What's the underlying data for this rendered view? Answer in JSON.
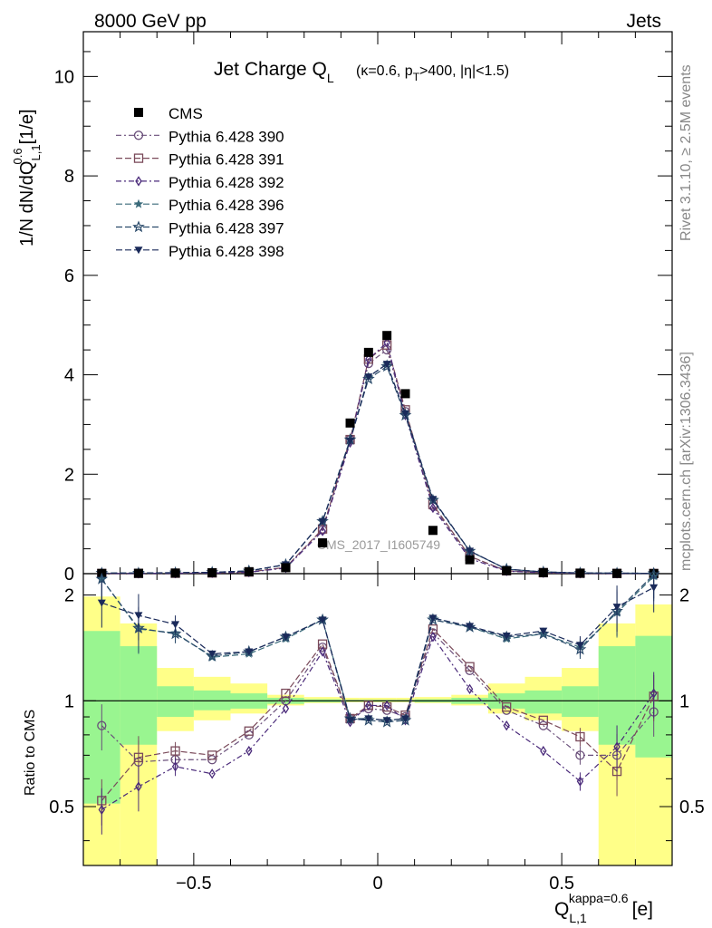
{
  "header": {
    "left": "8000 GeV pp",
    "right": "Jets"
  },
  "side_labels": {
    "rivet": "Rivet 3.1.10, ≥ 2.5M events",
    "mcplots": "mcplots.cern.ch [arXiv:1306.3436]"
  },
  "chart_data": {
    "type": "line",
    "title_main": "Jet Charge Q",
    "title_main_sub": "L",
    "title_detail": "(κ=0.6, p",
    "title_detail_sub": "T",
    "title_detail_rest": ">400, |η|<1.5)",
    "watermark": "CMS_2017_I1605749",
    "ylabel": "1/N dN/dQ",
    "ylabel_sup": "0.6",
    "ylabel_sub": "L,1",
    "ylabel_unit": "[1/e]",
    "ratio_ylabel": "Ratio to CMS",
    "xlabel": "Q",
    "xlabel_sup": "kappa=0.6",
    "xlabel_sub": "L,1",
    "xlabel_unit": "[e]",
    "xlim": [
      -0.8,
      0.8
    ],
    "ylim": [
      0,
      10.9
    ],
    "ratio_ylim": [
      0.34,
      2.3
    ],
    "x_ticks": [
      "−0.5",
      "0",
      "0.5"
    ],
    "x_tick_values": [
      -0.5,
      0,
      0.5
    ],
    "y_ticks": [
      "0",
      "2",
      "4",
      "6",
      "8",
      "10"
    ],
    "y_tick_values": [
      0,
      2,
      4,
      6,
      8,
      10
    ],
    "ratio_ticks": [
      "0.5",
      "1",
      "2"
    ],
    "ratio_tick_values": [
      0.5,
      1,
      2
    ],
    "bin_edges": [
      -0.8,
      -0.7,
      -0.6,
      -0.5,
      -0.4,
      -0.3,
      -0.2,
      -0.1,
      -0.05,
      0,
      0.05,
      0.1,
      0.2,
      0.3,
      0.4,
      0.5,
      0.6,
      0.7,
      0.8
    ],
    "x": [
      -0.75,
      -0.65,
      -0.55,
      -0.45,
      -0.35,
      -0.25,
      -0.15,
      -0.075,
      -0.025,
      0.025,
      0.075,
      0.15,
      0.25,
      0.35,
      0.45,
      0.55,
      0.65,
      0.75
    ],
    "data": {
      "name": "CMS",
      "values": [
        0.005,
        0.008,
        0.012,
        0.02,
        0.04,
        0.12,
        0.62,
        3.03,
        4.45,
        4.79,
        3.62,
        0.87,
        0.28,
        0.06,
        0.022,
        0.01,
        0.006,
        0.003
      ]
    },
    "band_yellow": [
      [
        0.34,
        1.98
      ],
      [
        0.34,
        1.66
      ],
      [
        0.82,
        1.24
      ],
      [
        0.88,
        1.17
      ],
      [
        0.92,
        1.12
      ],
      [
        0.97,
        1.04
      ],
      [
        0.985,
        1.025
      ],
      [
        0.99,
        1.02
      ],
      [
        0.99,
        1.02
      ],
      [
        0.99,
        1.02
      ],
      [
        0.99,
        1.02
      ],
      [
        0.985,
        1.025
      ],
      [
        0.97,
        1.04
      ],
      [
        0.92,
        1.12
      ],
      [
        0.88,
        1.17
      ],
      [
        0.82,
        1.24
      ],
      [
        0.34,
        1.66
      ],
      [
        0.34,
        1.88
      ]
    ],
    "band_green": [
      [
        0.51,
        1.58
      ],
      [
        0.75,
        1.43
      ],
      [
        0.9,
        1.1
      ],
      [
        0.94,
        1.07
      ],
      [
        0.95,
        1.05
      ],
      [
        0.98,
        1.02
      ],
      [
        0.99,
        1.01
      ],
      [
        0.994,
        1.006
      ],
      [
        0.994,
        1.006
      ],
      [
        0.994,
        1.006
      ],
      [
        0.994,
        1.006
      ],
      [
        0.99,
        1.01
      ],
      [
        0.98,
        1.02
      ],
      [
        0.95,
        1.05
      ],
      [
        0.92,
        1.07
      ],
      [
        0.9,
        1.1
      ],
      [
        0.75,
        1.43
      ],
      [
        0.69,
        1.53
      ]
    ],
    "series": [
      {
        "name": "Pythia 6.428 390",
        "color": "#6a4f7a",
        "marker": "circle",
        "dash": "6,3,2,3",
        "ratio": [
          0.85,
          0.67,
          0.68,
          0.68,
          0.8,
          1.0,
          1.42,
          0.89,
          0.95,
          0.94,
          0.9,
          1.56,
          1.22,
          0.94,
          0.85,
          0.7,
          0.7,
          0.93
        ]
      },
      {
        "name": "Pythia 6.428 391",
        "color": "#7a4a5a",
        "marker": "square",
        "dash": "7,3",
        "ratio": [
          0.52,
          0.69,
          0.72,
          0.7,
          0.82,
          1.05,
          1.45,
          0.89,
          0.97,
          0.96,
          0.91,
          1.6,
          1.25,
          0.96,
          0.88,
          0.79,
          0.63,
          1.03
        ]
      },
      {
        "name": "Pythia 6.428 392",
        "color": "#4a2a7a",
        "marker": "diamond",
        "dash": "6,3,2,3",
        "ratio": [
          0.49,
          0.57,
          0.65,
          0.62,
          0.72,
          0.95,
          1.38,
          0.87,
          0.97,
          0.97,
          0.88,
          1.52,
          1.08,
          0.85,
          0.72,
          0.59,
          0.74,
          1.05
        ]
      },
      {
        "name": "Pythia 6.428 396",
        "color": "#3a6a7a",
        "marker": "star",
        "dash": "7,3",
        "ratio": [
          2.22,
          1.6,
          1.56,
          1.33,
          1.36,
          1.5,
          1.7,
          0.89,
          0.89,
          0.88,
          0.89,
          1.72,
          1.62,
          1.5,
          1.55,
          1.42,
          1.78,
          2.26
        ]
      },
      {
        "name": "Pythia 6.428 397",
        "color": "#2a4a6a",
        "marker": "star-open",
        "dash": "7,3",
        "ratio": [
          2.22,
          1.61,
          1.55,
          1.34,
          1.38,
          1.52,
          1.7,
          0.89,
          0.88,
          0.87,
          0.88,
          1.7,
          1.62,
          1.52,
          1.55,
          1.4,
          1.8,
          2.3
        ]
      },
      {
        "name": "Pythia 6.428 398",
        "color": "#1a2a5a",
        "marker": "triangle-down",
        "dash": "7,3",
        "ratio": [
          1.9,
          1.75,
          1.65,
          1.36,
          1.38,
          1.52,
          1.7,
          0.88,
          0.89,
          0.88,
          0.89,
          1.72,
          1.63,
          1.53,
          1.58,
          1.44,
          1.85,
          2.1
        ]
      }
    ],
    "legend_position": "top-left",
    "grid": false
  }
}
